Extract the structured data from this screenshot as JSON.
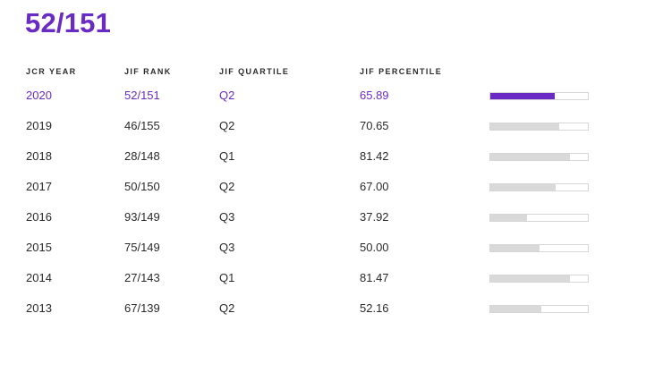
{
  "headline": "52/151",
  "columns": {
    "year": "JCR YEAR",
    "rank": "JIF RANK",
    "quartile": "JIF QUARTILE",
    "percentile": "JIF PERCENTILE"
  },
  "colors": {
    "accent": "#6a2bc4",
    "bar_fill": "#d9d9d9",
    "bar_border": "#d6d6d6",
    "text": "#2b2b2b"
  },
  "rows": [
    {
      "year": "2020",
      "rank": "52/151",
      "quartile": "Q2",
      "percentile": "65.89",
      "highlight": true
    },
    {
      "year": "2019",
      "rank": "46/155",
      "quartile": "Q2",
      "percentile": "70.65",
      "highlight": false
    },
    {
      "year": "2018",
      "rank": "28/148",
      "quartile": "Q1",
      "percentile": "81.42",
      "highlight": false
    },
    {
      "year": "2017",
      "rank": "50/150",
      "quartile": "Q2",
      "percentile": "67.00",
      "highlight": false
    },
    {
      "year": "2016",
      "rank": "93/149",
      "quartile": "Q3",
      "percentile": "37.92",
      "highlight": false
    },
    {
      "year": "2015",
      "rank": "75/149",
      "quartile": "Q3",
      "percentile": "50.00",
      "highlight": false
    },
    {
      "year": "2014",
      "rank": "27/143",
      "quartile": "Q1",
      "percentile": "81.47",
      "highlight": false
    },
    {
      "year": "2013",
      "rank": "67/139",
      "quartile": "Q2",
      "percentile": "52.16",
      "highlight": false
    }
  ]
}
